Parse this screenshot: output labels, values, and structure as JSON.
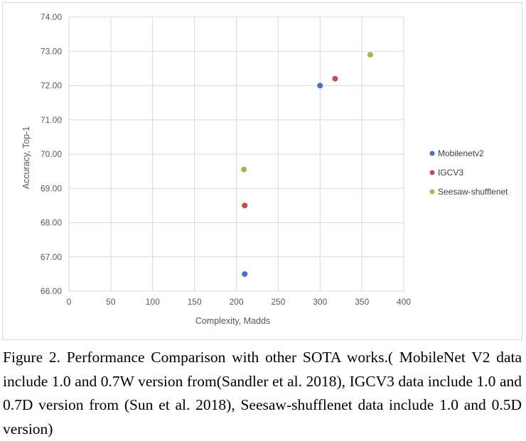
{
  "chart_data": {
    "type": "scatter",
    "title": "",
    "xlabel": "Complexity, Madds",
    "ylabel": "Accuracy, Top-1",
    "xlim": [
      0,
      400
    ],
    "ylim": [
      66,
      74
    ],
    "x_ticks": [
      "0",
      "50",
      "100",
      "150",
      "200",
      "250",
      "300",
      "350",
      "400"
    ],
    "y_ticks": [
      "66.00",
      "67.00",
      "68.00",
      "69.00",
      "70.00",
      "71.00",
      "72.00",
      "73.00",
      "74.00"
    ],
    "grid": true,
    "legend_position": "right",
    "series": [
      {
        "name": "Mobilenetv2",
        "color": "#4472c4",
        "points": [
          {
            "x": 300,
            "y": 72.0
          },
          {
            "x": 210,
            "y": 66.5
          }
        ]
      },
      {
        "name": "IGCV3",
        "color": "#c0504d",
        "points": [
          {
            "x": 318,
            "y": 72.2
          },
          {
            "x": 210,
            "y": 68.5
          }
        ]
      },
      {
        "name": "Seesaw-shufflenet",
        "color": "#9bbb59",
        "points": [
          {
            "x": 360,
            "y": 72.9
          },
          {
            "x": 209,
            "y": 69.55
          }
        ]
      }
    ]
  },
  "caption": "Figure 2. Performance Comparison with other SOTA works.( MobileNet V2 data include 1.0 and 0.7W version from(Sandler et al. 2018), IGCV3 data include 1.0 and 0.7D version from (Sun et al. 2018), Seesaw-shufflenet data include 1.0 and 0.5D version)"
}
